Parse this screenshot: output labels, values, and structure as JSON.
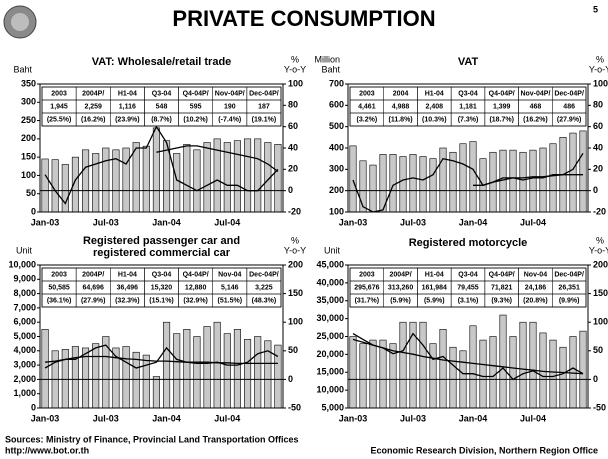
{
  "title": "PRIVATE CONSUMPTION",
  "page": "5",
  "footer": {
    "source": "Sources: Ministry of Finance, Provincial Land Transportation Offices",
    "url": "http://www.bot.or.th",
    "office": "Economic Research Division, Northern Region Office"
  },
  "chart_data": [
    {
      "type": "bar",
      "title": [
        "VAT: Wholesale/retail trade"
      ],
      "ylabel": [
        "Baht"
      ],
      "y2label": [
        "%",
        "Y-o-Y"
      ],
      "categories": [
        "Jan-03",
        null,
        null,
        null,
        null,
        null,
        "Jul-03",
        null,
        null,
        null,
        null,
        null,
        "Jan-04",
        null,
        null,
        null,
        null,
        null,
        "Jul-04",
        null,
        null,
        null,
        null,
        null
      ],
      "ylim": [
        0,
        350
      ],
      "yticks": [
        0,
        50,
        100,
        150,
        200,
        250,
        300,
        350
      ],
      "y2lim": [
        -20,
        100
      ],
      "y2ticks": [
        -20,
        0,
        20,
        40,
        60,
        80,
        100
      ],
      "series": [
        {
          "color": "#c8c8c8",
          "values": [
            145,
            143,
            130,
            150,
            170,
            160,
            175,
            170,
            175,
            190,
            180,
            230,
            195,
            160,
            185,
            170,
            190,
            200,
            190,
            195,
            200,
            200,
            190,
            185
          ]
        },
        {
          "color": "#000000",
          "axis": "y2",
          "values": [
            15,
            0,
            -12,
            10,
            22,
            25,
            28,
            30,
            25,
            40,
            40,
            60,
            45,
            10,
            5,
            0,
            5,
            10,
            5,
            5,
            0,
            0,
            10,
            20
          ]
        },
        {
          "color": "#000000",
          "axis": "y2",
          "values": [
            null,
            null,
            null,
            null,
            null,
            null,
            null,
            null,
            null,
            null,
            null,
            36,
            38,
            40,
            42,
            42,
            40,
            38,
            36,
            34,
            32,
            30,
            25,
            18
          ]
        }
      ],
      "table": {
        "headers": [
          "2003",
          "2004P/",
          "H1-04",
          "Q3-04",
          "Q4-04P/",
          "Nov-04P/",
          "Dec-04P/"
        ],
        "rows": [
          [
            "1,945",
            "2,259",
            "1,116",
            "548",
            "595",
            "190",
            "187"
          ],
          [
            "(25.5%)",
            "(16.2%)",
            "(23.9%)",
            "(8.7%)",
            "(10.2%)",
            "(-7.4%)",
            "(19.1%)"
          ]
        ]
      }
    },
    {
      "type": "bar",
      "title": [
        "VAT"
      ],
      "ylabel": [
        "Million",
        "Baht"
      ],
      "y2label": [
        "%",
        "Y-o-Y"
      ],
      "categories": [
        "Jan-03",
        null,
        null,
        null,
        null,
        null,
        "Jul-03",
        null,
        null,
        null,
        null,
        null,
        "Jan-04",
        null,
        null,
        null,
        null,
        null,
        "Jul-04",
        null,
        null,
        null,
        null,
        null
      ],
      "ylim": [
        100,
        700
      ],
      "yticks": [
        100,
        200,
        300,
        400,
        500,
        600,
        700
      ],
      "y2lim": [
        -20,
        100
      ],
      "y2ticks": [
        -20,
        0,
        20,
        40,
        60,
        80,
        100
      ],
      "series": [
        {
          "color": "#c8c8c8",
          "values": [
            410,
            340,
            320,
            370,
            370,
            360,
            370,
            360,
            350,
            400,
            380,
            420,
            430,
            350,
            380,
            390,
            390,
            380,
            390,
            400,
            420,
            450,
            470,
            480
          ]
        },
        {
          "color": "#000000",
          "axis": "y2",
          "values": [
            10,
            -15,
            -20,
            -18,
            5,
            10,
            12,
            10,
            15,
            30,
            28,
            25,
            20,
            5,
            8,
            12,
            12,
            10,
            12,
            12,
            15,
            15,
            20,
            35
          ]
        },
        {
          "color": "#000000",
          "axis": "y2",
          "values": [
            null,
            null,
            null,
            null,
            null,
            null,
            null,
            null,
            null,
            null,
            null,
            null,
            5,
            5,
            8,
            10,
            12,
            12,
            13,
            13,
            14,
            15,
            15,
            15
          ]
        }
      ],
      "table": {
        "headers": [
          "2003",
          "2004",
          "H1-04",
          "Q3-04",
          "Q4-04P/",
          "Nov-04P/",
          "Dec-04P/"
        ],
        "rows": [
          [
            "4,461",
            "4,988",
            "2,408",
            "1,181",
            "1,399",
            "468",
            "486"
          ],
          [
            "(3.2%)",
            "(11.8%)",
            "(10.3%)",
            "(7.3%)",
            "(18.7%)",
            "(16.2%)",
            "(27.9%)"
          ]
        ]
      }
    },
    {
      "type": "bar",
      "title": [
        "Registered passenger car and",
        "registered commercial car"
      ],
      "ylabel": [
        "Unit"
      ],
      "y2label": [
        "%",
        "Y-o-Y"
      ],
      "categories": [
        "Jan-03",
        null,
        null,
        null,
        null,
        null,
        "Jul-03",
        null,
        null,
        null,
        null,
        null,
        "Jan-04",
        null,
        null,
        null,
        null,
        null,
        "Jul-04",
        null,
        null,
        null,
        null,
        null
      ],
      "ylim": [
        0,
        10000
      ],
      "yticks": [
        0,
        {
          "value": 1000,
          "label": "1,000"
        },
        {
          "value": 2000,
          "label": "2,000"
        },
        {
          "value": 3000,
          "label": "3,000"
        },
        {
          "value": 4000,
          "label": "4,000"
        },
        {
          "value": 5000,
          "label": "5,000"
        },
        {
          "value": 6000,
          "label": "6,000"
        },
        {
          "value": 7000,
          "label": "7,000"
        },
        {
          "value": 8000,
          "label": "8,000"
        },
        {
          "value": 9000,
          "label": "9,000"
        },
        {
          "value": 10000,
          "label": "10,000"
        }
      ],
      "y2lim": [
        -50,
        200
      ],
      "y2ticks": [
        -50,
        0,
        50,
        100,
        150,
        200
      ],
      "series": [
        {
          "color": "#c8c8c8",
          "values": [
            5500,
            4000,
            4100,
            4300,
            4200,
            4500,
            5000,
            4200,
            4300,
            3900,
            3700,
            2200,
            6000,
            5200,
            5500,
            5000,
            5700,
            6000,
            5200,
            5500,
            4800,
            5000,
            4700,
            4400
          ]
        },
        {
          "color": "#000000",
          "axis": "y2",
          "values": [
            20,
            30,
            35,
            35,
            45,
            55,
            60,
            40,
            30,
            20,
            25,
            30,
            55,
            35,
            30,
            28,
            28,
            30,
            25,
            25,
            30,
            45,
            50,
            40
          ]
        },
        {
          "color": "#000000",
          "axis": "y2",
          "values": [
            30,
            32,
            35,
            38,
            40,
            40,
            40,
            38,
            36,
            35,
            33,
            32,
            32,
            31,
            30,
            30,
            30,
            29,
            29,
            28,
            28,
            28,
            28,
            28
          ]
        }
      ],
      "table": {
        "headers": [
          "2003",
          "2004P/",
          "H1-04",
          "Q3-04",
          "Q4-04P/",
          "Nov-04",
          "Dec-04P/"
        ],
        "rows": [
          [
            "50,585",
            "64,696",
            "36,496",
            "15,320",
            "12,880",
            "5,146",
            "3,225"
          ],
          [
            "(36.1%)",
            "(27.9%)",
            "(32.3%)",
            "(15.1%)",
            "(32.9%)",
            "(51.5%)",
            "(48.3%)"
          ]
        ]
      }
    },
    {
      "type": "bar",
      "title": [
        "Registered motorcycle"
      ],
      "ylabel": [
        "Unit"
      ],
      "y2label": [
        "%",
        "Y-o-Y"
      ],
      "categories": [
        "Jan-03",
        null,
        null,
        null,
        null,
        null,
        "Jul-03",
        null,
        null,
        null,
        null,
        null,
        "Jan-04",
        null,
        null,
        null,
        null,
        null,
        "Jul-04",
        null,
        null,
        null,
        null,
        null
      ],
      "ylim": [
        5000,
        45000
      ],
      "yticks": [
        {
          "value": 5000,
          "label": "5,000"
        },
        {
          "value": 10000,
          "label": "10,000"
        },
        {
          "value": 15000,
          "label": "15,000"
        },
        {
          "value": 20000,
          "label": "20,000"
        },
        {
          "value": 25000,
          "label": "25,000"
        },
        {
          "value": 30000,
          "label": "30,000"
        },
        {
          "value": 35000,
          "label": "35,000"
        },
        {
          "value": 40000,
          "label": "40,000"
        },
        {
          "value": 45000,
          "label": "45,000"
        }
      ],
      "y2lim": [
        -50,
        200
      ],
      "y2ticks": [
        -50,
        0,
        50,
        100,
        150,
        200
      ],
      "series": [
        {
          "color": "#c8c8c8",
          "values": [
            25000,
            23000,
            24000,
            24000,
            23000,
            29000,
            29000,
            29000,
            23000,
            27000,
            22000,
            21000,
            28000,
            24000,
            25000,
            31000,
            25000,
            29000,
            29000,
            26000,
            24000,
            22000,
            25000,
            26500
          ]
        },
        {
          "color": "#000000",
          "axis": "y2",
          "values": [
            80,
            70,
            60,
            55,
            45,
            50,
            80,
            60,
            35,
            40,
            25,
            10,
            10,
            5,
            5,
            20,
            0,
            10,
            15,
            5,
            5,
            10,
            20,
            10
          ]
        },
        {
          "color": "#000000",
          "axis": "y2",
          "values": [
            70,
            65,
            60,
            55,
            50,
            47,
            44,
            40,
            37,
            34,
            32,
            30,
            28,
            26,
            24,
            22,
            20,
            18,
            16,
            14,
            13,
            12,
            11,
            10
          ]
        }
      ],
      "table": {
        "headers": [
          "2003",
          "2004P/",
          "H1-04",
          "Q3-04",
          "Q4-04P/",
          "Nov-04",
          "Dec-04P/"
        ],
        "rows": [
          [
            "295,676",
            "313,260",
            "161,984",
            "79,455",
            "71,821",
            "24,186",
            "26,351"
          ],
          [
            "(31.7%)",
            "(5.9%)",
            "(5.9%)",
            "(3.1%)",
            "(9.3%)",
            "(20.8%)",
            "(9.9%)"
          ]
        ]
      }
    }
  ]
}
